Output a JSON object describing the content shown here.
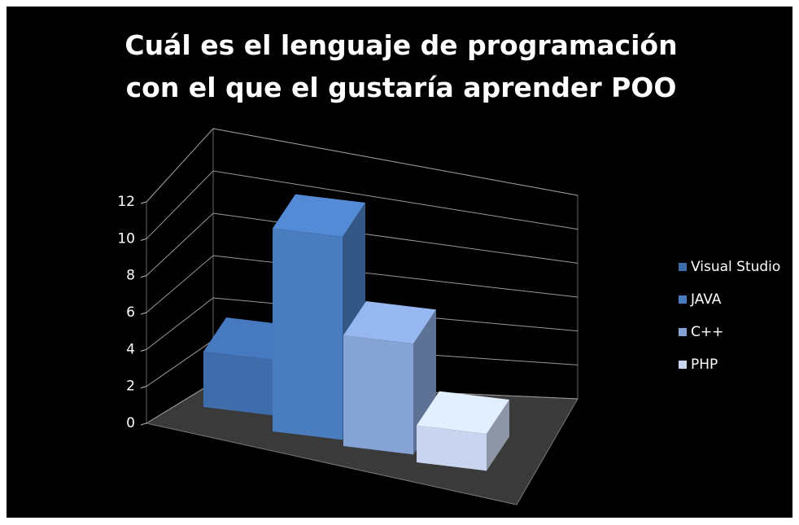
{
  "chart_data": {
    "type": "bar3d",
    "title": "Cuál es el lenguaje de programación con el que el gustaría aprender POO",
    "categories": [
      "Visual Studio",
      "JAVA",
      "C++",
      "PHP"
    ],
    "values": [
      3,
      11,
      6,
      2
    ],
    "colors": [
      "#3f6cab",
      "#4a7cc0",
      "#86a3d6",
      "#c9d5ee"
    ],
    "ylim": [
      0,
      12
    ],
    "yticks": [
      0,
      2,
      4,
      6,
      8,
      10,
      12
    ],
    "grid": true,
    "legend": "right"
  }
}
